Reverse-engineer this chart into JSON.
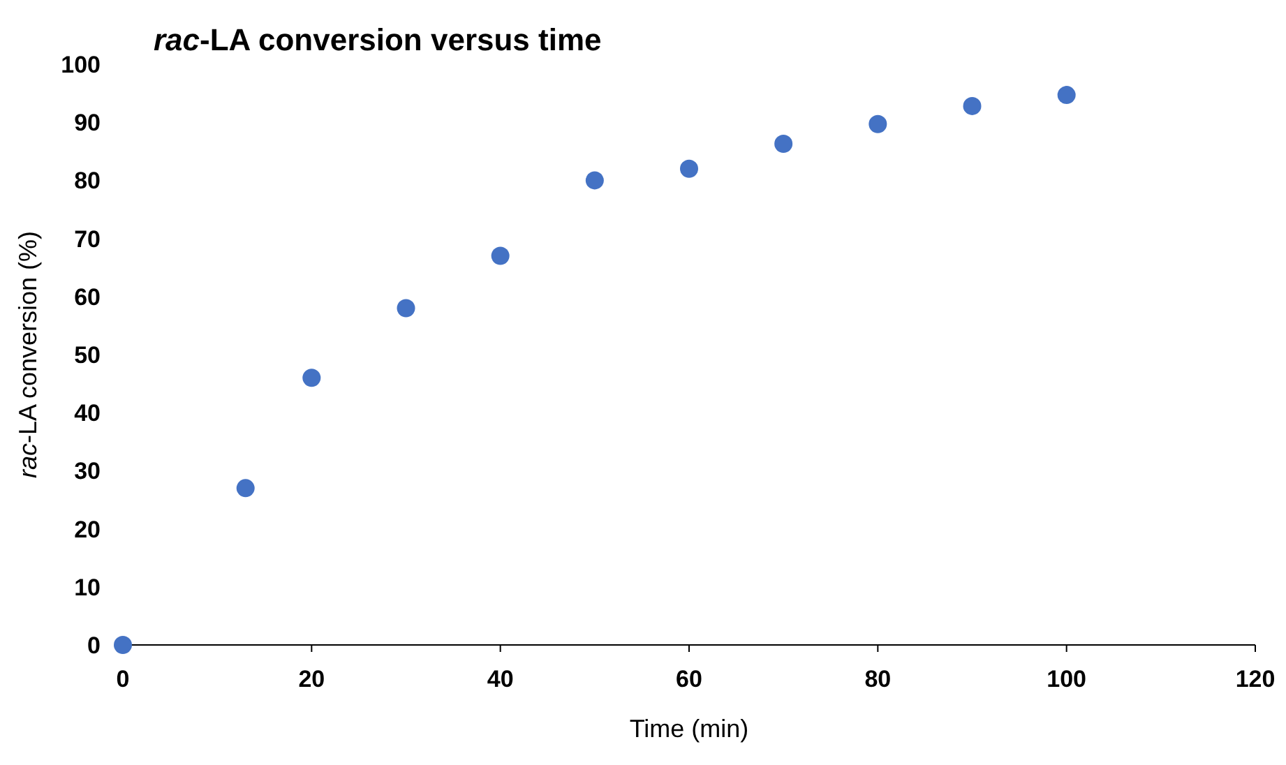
{
  "chart_data": {
    "type": "scatter",
    "title": "rac-LA conversion versus time",
    "xlabel": "Time (min)",
    "ylabel": "rac-LA conversion (%)",
    "x": [
      0,
      13,
      20,
      30,
      40,
      50,
      60,
      70,
      80,
      90,
      100
    ],
    "series": [
      {
        "color": "#4472c4",
        "values": [
          0,
          27,
          46,
          58,
          67,
          80,
          82,
          86.3,
          89.7,
          92.8,
          94.7
        ]
      }
    ],
    "xlim": [
      0,
      120
    ],
    "xticks": [
      0,
      20,
      40,
      60,
      80,
      100,
      120
    ],
    "ylim": [
      0,
      100
    ],
    "yticks": [
      0,
      10,
      20,
      30,
      40,
      50,
      60,
      70,
      80,
      90,
      100
    ],
    "grid": false,
    "marker": "circle"
  }
}
